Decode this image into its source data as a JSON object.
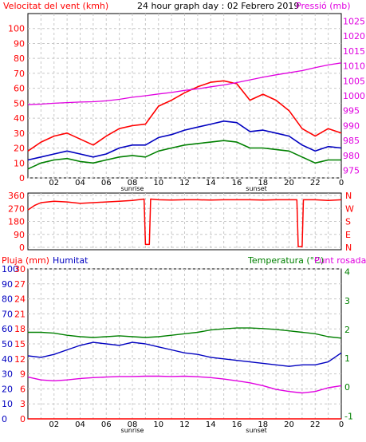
{
  "header": {
    "title": "24 hour graph day : 02 Febrero 2019",
    "wind_label": "Velocitat del vent (kmh)",
    "pressure_label": "Pressió (mb)"
  },
  "dir_panel": {
    "labels": [
      "N",
      "W",
      "S",
      "E",
      "N"
    ]
  },
  "bottom_panel": {
    "rain_label": "Pluja (mm)",
    "humidity_label": "Humitat",
    "temp_label": "Temperatura (°C)",
    "dew_label": "Punt rosada"
  },
  "colors": {
    "wind_gust": "#ff0000",
    "wind_avg": "#0000c0",
    "wind_low": "#008000",
    "pressure": "#e000e0",
    "direction": "#ff0000",
    "humidity": "#0000c0",
    "temperature": "#008000",
    "dew": "#e000e0",
    "rain": "#ff0000"
  },
  "chart_data": [
    {
      "type": "line",
      "title": "24 hour graph day : 02 Febrero 2019",
      "xlabel": "",
      "x_ticks": [
        "02",
        "04",
        "06",
        "08",
        "10",
        "12",
        "14",
        "16",
        "18",
        "20",
        "22",
        "0"
      ],
      "x_markers": [
        "sunrise",
        "sunset"
      ],
      "xlim": [
        0,
        24
      ],
      "y_left": {
        "label": "Velocitat del vent (kmh)",
        "ticks": [
          0,
          10,
          20,
          30,
          40,
          50,
          60,
          70,
          80,
          90,
          100
        ],
        "range": [
          0,
          110
        ]
      },
      "y_right": {
        "label": "Pressió (mb)",
        "ticks": [
          975,
          980,
          985,
          990,
          995,
          1000,
          1005,
          1010,
          1015,
          1020,
          1025
        ],
        "range": [
          972.5,
          1027.5
        ]
      },
      "grid": true,
      "series": [
        {
          "axis": "left",
          "x": [
            0,
            1,
            2,
            3,
            4,
            5,
            6,
            7,
            8,
            9,
            10,
            11,
            12,
            13,
            14,
            15,
            16,
            17,
            18,
            19,
            20,
            21,
            22,
            23,
            24
          ],
          "values": [
            18,
            24,
            28,
            30,
            26,
            22,
            28,
            33,
            35,
            36,
            48,
            52,
            57,
            61,
            64,
            65,
            63,
            52,
            56,
            52,
            45,
            33,
            28,
            33,
            30
          ]
        },
        {
          "axis": "left",
          "x": [
            0,
            1,
            2,
            3,
            4,
            5,
            6,
            7,
            8,
            9,
            10,
            11,
            12,
            13,
            14,
            15,
            16,
            17,
            18,
            19,
            20,
            21,
            22,
            23,
            24
          ],
          "values": [
            12,
            14,
            16,
            18,
            16,
            14,
            16,
            20,
            22,
            22,
            27,
            29,
            32,
            34,
            36,
            38,
            37,
            31,
            32,
            30,
            28,
            22,
            18,
            21,
            20
          ]
        },
        {
          "axis": "left",
          "x": [
            0,
            1,
            2,
            3,
            4,
            5,
            6,
            7,
            8,
            9,
            10,
            11,
            12,
            13,
            14,
            15,
            16,
            17,
            18,
            19,
            20,
            21,
            22,
            23,
            24
          ],
          "values": [
            6,
            10,
            12,
            13,
            11,
            10,
            12,
            14,
            15,
            14,
            18,
            20,
            22,
            23,
            24,
            25,
            24,
            20,
            20,
            19,
            18,
            14,
            10,
            12,
            12
          ]
        },
        {
          "axis": "right",
          "x": [
            0,
            1,
            2,
            3,
            4,
            5,
            6,
            7,
            8,
            9,
            10,
            11,
            12,
            13,
            14,
            15,
            16,
            17,
            18,
            19,
            20,
            21,
            22,
            23,
            24
          ],
          "values": [
            997,
            997.2,
            997.5,
            997.7,
            997.9,
            998,
            998.3,
            998.8,
            999.5,
            1000,
            1000.6,
            1001.1,
            1001.8,
            1002.3,
            1003,
            1003.6,
            1004.4,
            1005.3,
            1006.2,
            1007,
            1007.7,
            1008.4,
            1009.4,
            1010.3,
            1011
          ]
        }
      ]
    },
    {
      "type": "line",
      "title": "",
      "x_ticks": [
        "02",
        "04",
        "06",
        "08",
        "10",
        "12",
        "14",
        "16",
        "18",
        "20",
        "22",
        "0"
      ],
      "xlim": [
        0,
        24
      ],
      "y_left": {
        "ticks": [
          0,
          90,
          180,
          270,
          360
        ],
        "range": [
          0,
          360
        ]
      },
      "y_right": {
        "ticks": [
          "N",
          "W",
          "S",
          "E",
          "N"
        ]
      },
      "grid": true,
      "series": [
        {
          "x": [
            0,
            0.5,
            1,
            2,
            3,
            4,
            5,
            6,
            7,
            8,
            8.9,
            9.0,
            9.3,
            9.4,
            10,
            11,
            12,
            13,
            14,
            15,
            16,
            17,
            18,
            19,
            20,
            20.6,
            20.7,
            21.0,
            21.1,
            22,
            23,
            24
          ],
          "values": [
            260,
            290,
            310,
            320,
            315,
            305,
            310,
            315,
            320,
            325,
            335,
            20,
            20,
            335,
            330,
            328,
            330,
            330,
            328,
            330,
            330,
            330,
            328,
            330,
            330,
            330,
            5,
            5,
            330,
            330,
            325,
            330
          ]
        }
      ]
    },
    {
      "type": "line",
      "title": "",
      "x_ticks": [
        "02",
        "04",
        "06",
        "08",
        "10",
        "12",
        "14",
        "16",
        "18",
        "20",
        "22",
        "0"
      ],
      "x_markers": [
        "sunrise",
        "sunset"
      ],
      "xlim": [
        0,
        24
      ],
      "y_left": {
        "label": "Pluja (mm)",
        "ticks": [
          0,
          10,
          20,
          30,
          40,
          50,
          60,
          70,
          80,
          90,
          100
        ],
        "range": [
          0,
          100
        ]
      },
      "y_left2": {
        "label": "Humitat",
        "ticks": [
          0,
          3,
          6,
          9,
          12,
          15,
          18,
          21,
          24,
          27,
          30
        ],
        "range": [
          0,
          30
        ]
      },
      "y_right": {
        "label": "Temperatura (°C)",
        "ticks": [
          -1,
          0,
          1,
          2,
          3,
          4
        ],
        "range": [
          -1.1,
          4.1
        ]
      },
      "grid": true,
      "series": [
        {
          "name": "Humitat",
          "axis": "left",
          "x": [
            0,
            1,
            2,
            3,
            4,
            5,
            6,
            7,
            8,
            9,
            10,
            11,
            12,
            13,
            14,
            15,
            16,
            17,
            18,
            19,
            20,
            21,
            22,
            23,
            24
          ],
          "values": [
            42,
            41,
            43,
            46,
            49,
            51,
            50,
            49,
            51,
            50,
            48,
            46,
            44,
            43,
            41,
            40,
            39,
            38,
            37,
            36,
            35,
            36,
            36,
            38,
            44
          ]
        },
        {
          "name": "Temperatura (°C)",
          "axis": "right",
          "x": [
            0,
            1,
            2,
            3,
            4,
            5,
            6,
            7,
            8,
            9,
            10,
            11,
            12,
            13,
            14,
            15,
            16,
            17,
            18,
            19,
            20,
            21,
            22,
            23,
            24
          ],
          "values": [
            1.9,
            1.9,
            1.87,
            1.8,
            1.75,
            1.72,
            1.75,
            1.78,
            1.75,
            1.72,
            1.75,
            1.8,
            1.85,
            1.9,
            1.98,
            2.02,
            2.05,
            2.05,
            2.03,
            2.0,
            1.95,
            1.9,
            1.85,
            1.75,
            1.7
          ]
        },
        {
          "name": "Punt rosada",
          "axis": "right",
          "x": [
            0,
            1,
            2,
            3,
            4,
            5,
            6,
            7,
            8,
            9,
            10,
            11,
            12,
            13,
            14,
            15,
            16,
            17,
            18,
            19,
            20,
            21,
            22,
            23,
            24
          ],
          "values": [
            0.35,
            0.25,
            0.22,
            0.25,
            0.3,
            0.33,
            0.35,
            0.37,
            0.37,
            0.38,
            0.38,
            0.37,
            0.38,
            0.36,
            0.33,
            0.28,
            0.22,
            0.15,
            0.05,
            -0.08,
            -0.15,
            -0.2,
            -0.15,
            -0.02,
            0.05
          ]
        },
        {
          "name": "Pluja (mm)",
          "axis": "left",
          "x": [
            0,
            24
          ],
          "values": [
            0,
            0
          ]
        }
      ]
    }
  ]
}
